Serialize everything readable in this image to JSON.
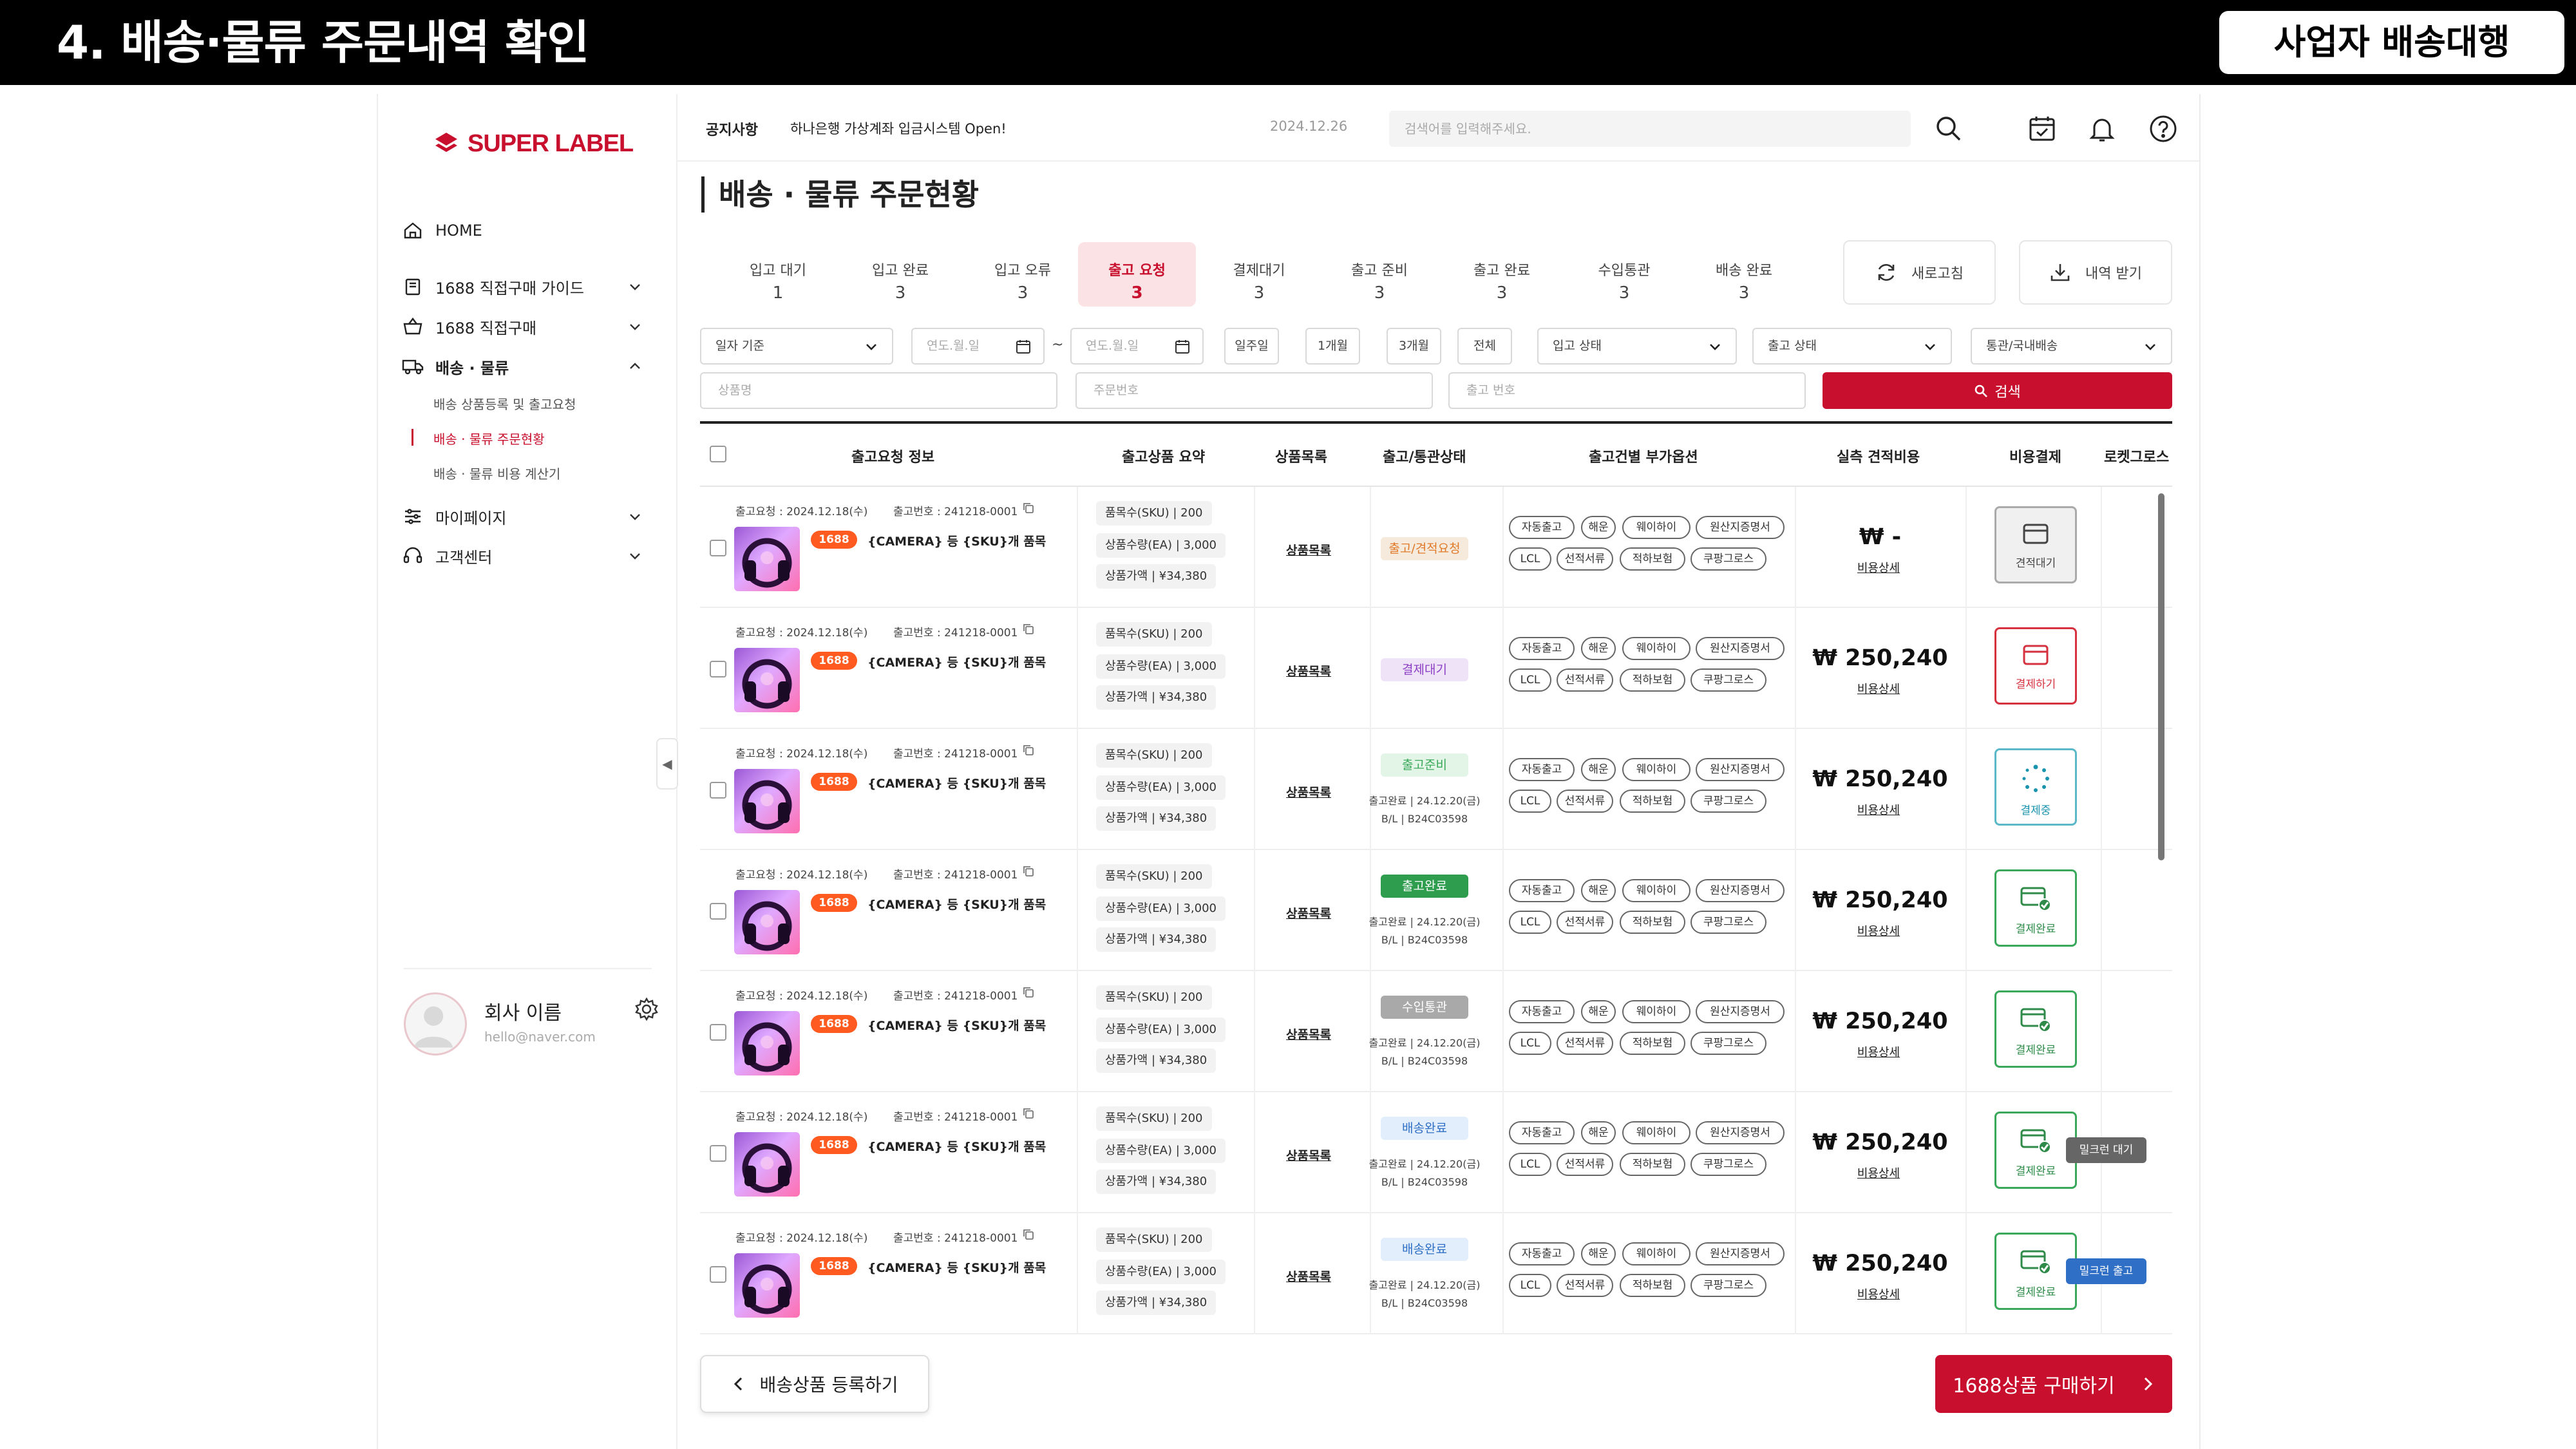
{
  "slide": {
    "title": "4. 배송·물류 주문내역 확인",
    "badge": "사업자 배송대행"
  },
  "brand": {
    "logo": "SUPER LABEL",
    "accent": "#c8102e"
  },
  "sidebar": {
    "items": [
      {
        "label": "HOME",
        "icon": "home-icon"
      },
      {
        "label": "1688 직접구매 가이드",
        "icon": "guide-book-icon"
      },
      {
        "label": "1688 직접구매",
        "icon": "basket-icon"
      },
      {
        "label": "배송 · 물류",
        "icon": "truck-icon"
      },
      {
        "label": "마이페이지",
        "icon": "sliders-icon"
      },
      {
        "label": "고객센터",
        "icon": "headset-icon"
      }
    ],
    "sub_items": [
      "배송 상품등록 및 출고요청",
      "배송 · 물류 주문현황",
      "배송 · 물류 비용 계산기"
    ],
    "profile": {
      "name": "회사 이름",
      "email": "hello@naver.com"
    }
  },
  "topbar": {
    "notice_label": "공지사항",
    "notice_text": "하나은행 가상계좌 입금시스템 Open!",
    "notice_date": "2024.12.26",
    "search_placeholder": "검색어를 입력해주세요."
  },
  "page": {
    "title": "배송 · 물류 주문현황"
  },
  "status_tabs": [
    {
      "label": "입고 대기",
      "count": "1"
    },
    {
      "label": "입고 완료",
      "count": "3"
    },
    {
      "label": "입고 오류",
      "count": "3"
    },
    {
      "label": "출고 요청",
      "count": "3",
      "active": true
    },
    {
      "label": "결제대기",
      "count": "3"
    },
    {
      "label": "출고 준비",
      "count": "3"
    },
    {
      "label": "출고 완료",
      "count": "3"
    },
    {
      "label": "수입통관",
      "count": "3"
    },
    {
      "label": "배송 완료",
      "count": "3"
    }
  ],
  "actions": {
    "refresh": "새로고침",
    "download": "내역 받기"
  },
  "filters": {
    "date_basis": "일자 기준",
    "date_placeholder": "연도.월.일",
    "date_sep": "~",
    "quick": [
      "일주일",
      "1개월",
      "3개월",
      "전체"
    ],
    "inbound_status": "입고 상태",
    "outbound_status": "출고 상태",
    "customs": "통관/국내배송",
    "product_placeholder": "상품명",
    "order_placeholder": "주문번호",
    "outbound_placeholder": "출고 번호",
    "search_btn": "검색"
  },
  "table": {
    "headers": [
      "출고요청 정보",
      "출고상품 요약",
      "상품목록",
      "출고/통관상태",
      "출고건별 부가옵션",
      "실측 견적비용",
      "비용결제",
      "로켓그로스"
    ],
    "option_tags": [
      "자동출고",
      "해운",
      "웨이하이",
      "원산지증명서",
      "LCL",
      "선적서류",
      "적하보험",
      "쿠팡그로스"
    ],
    "rows": [
      {
        "req_date": "출고요청 : 2024.12.18(수)",
        "out_no": "출고번호 : 241218-0001",
        "source": "1688",
        "name": "{CAMERA} 등 {SKU}개 품목",
        "sku": "품목수(SKU) | 200",
        "qty": "상품수량(EA) | 3,000",
        "amount": "상품가액 | ¥34,380",
        "list": "상품목록",
        "status": "출고/견적요청",
        "status_color": "#f6eadc",
        "status_text_color": "#e07a2a",
        "info1": "",
        "info2": "",
        "price": "₩  -",
        "detail": "비용상세",
        "pay": "견적대기",
        "pay_kind": "wait",
        "rocket": ""
      },
      {
        "req_date": "출고요청 : 2024.12.18(수)",
        "out_no": "출고번호 : 241218-0001",
        "source": "1688",
        "name": "{CAMERA} 등 {SKU}개 품목",
        "sku": "품목수(SKU) | 200",
        "qty": "상품수량(EA) | 3,000",
        "amount": "상품가액 | ¥34,380",
        "list": "상품목록",
        "status": "결제대기",
        "status_color": "#efe3f8",
        "status_text_color": "#8c3fc4",
        "info1": "",
        "info2": "",
        "price": "₩ 250,240",
        "detail": "비용상세",
        "pay": "결제하기",
        "pay_kind": "do",
        "rocket": ""
      },
      {
        "req_date": "출고요청 : 2024.12.18(수)",
        "out_no": "출고번호 : 241218-0001",
        "source": "1688",
        "name": "{CAMERA} 등 {SKU}개 품목",
        "sku": "품목수(SKU) | 200",
        "qty": "상품수량(EA) | 3,000",
        "amount": "상품가액 | ¥34,380",
        "list": "상품목록",
        "status": "출고준비",
        "status_color": "#e3f5e6",
        "status_text_color": "#3aa85a",
        "info1": "출고완료 | 24.12.20(금)",
        "info2": "B/L | B24C03598",
        "price": "₩ 250,240",
        "detail": "비용상세",
        "pay": "결제중",
        "pay_kind": "ing",
        "rocket": ""
      },
      {
        "req_date": "출고요청 : 2024.12.18(수)",
        "out_no": "출고번호 : 241218-0001",
        "source": "1688",
        "name": "{CAMERA} 등 {SKU}개 품목",
        "sku": "품목수(SKU) | 200",
        "qty": "상품수량(EA) | 3,000",
        "amount": "상품가액 | ¥34,380",
        "list": "상품목록",
        "status": "출고완료",
        "status_color": "#2e9e4e",
        "status_text_color": "#ffffff",
        "info1": "출고완료 | 24.12.20(금)",
        "info2": "B/L | B24C03598",
        "price": "₩ 250,240",
        "detail": "비용상세",
        "pay": "결제완료",
        "pay_kind": "done",
        "rocket": ""
      },
      {
        "req_date": "출고요청 : 2024.12.18(수)",
        "out_no": "출고번호 : 241218-0001",
        "source": "1688",
        "name": "{CAMERA} 등 {SKU}개 품목",
        "sku": "품목수(SKU) | 200",
        "qty": "상품수량(EA) | 3,000",
        "amount": "상품가액 | ¥34,380",
        "list": "상품목록",
        "status": "수입통관",
        "status_color": "#a9a9a9",
        "status_text_color": "#ffffff",
        "info1": "출고완료 | 24.12.20(금)",
        "info2": "B/L | B24C03598",
        "price": "₩ 250,240",
        "detail": "비용상세",
        "pay": "결제완료",
        "pay_kind": "done",
        "rocket": ""
      },
      {
        "req_date": "출고요청 : 2024.12.18(수)",
        "out_no": "출고번호 : 241218-0001",
        "source": "1688",
        "name": "{CAMERA} 등 {SKU}개 품목",
        "sku": "품목수(SKU) | 200",
        "qty": "상품수량(EA) | 3,000",
        "amount": "상품가액 | ¥34,380",
        "list": "상품목록",
        "status": "배송완료",
        "status_color": "#e2eefb",
        "status_text_color": "#2f6fc6",
        "info1": "출고완료 | 24.12.20(금)",
        "info2": "B/L | B24C03598",
        "price": "₩ 250,240",
        "detail": "비용상세",
        "pay": "결제완료",
        "pay_kind": "done",
        "rocket": "밀크런 대기",
        "rocket_color": "#666666"
      },
      {
        "req_date": "출고요청 : 2024.12.18(수)",
        "out_no": "출고번호 : 241218-0001",
        "source": "1688",
        "name": "{CAMERA} 등 {SKU}개 품목",
        "sku": "품목수(SKU) | 200",
        "qty": "상품수량(EA) | 3,000",
        "amount": "상품가액 | ¥34,380",
        "list": "상품목록",
        "status": "배송완료",
        "status_color": "#e2eefb",
        "status_text_color": "#2f6fc6",
        "info1": "출고완료 | 24.12.20(금)",
        "info2": "B/L | B24C03598",
        "price": "₩ 250,240",
        "detail": "비용상세",
        "pay": "결제완료",
        "pay_kind": "done",
        "rocket": "밀크런 출고",
        "rocket_color": "#2f6fc6"
      }
    ]
  },
  "footer": {
    "register": "배송상품 등록하기",
    "buy": "1688상품 구매하기"
  }
}
